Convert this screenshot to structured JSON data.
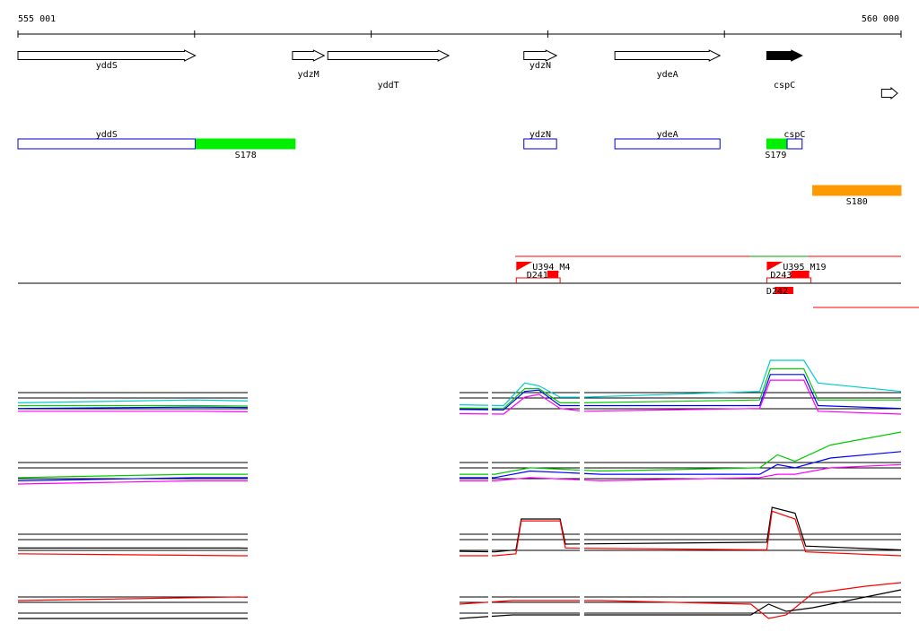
{
  "ruler": {
    "start_label": "555 001",
    "end_label": "560 000",
    "start": 555001,
    "end": 560000
  },
  "genes": [
    {
      "name": "yddS",
      "start": 555001,
      "end": 556005,
      "strand": "+",
      "color": "#ffffff"
    },
    {
      "name": "ydzM",
      "start": 556555,
      "end": 556735,
      "strand": "+",
      "color": "#ffffff"
    },
    {
      "name": "yddT",
      "start": 556755,
      "end": 557440,
      "strand": "+",
      "color": "#ffffff"
    },
    {
      "name": "ydzN",
      "start": 557865,
      "end": 558050,
      "strand": "+",
      "color": "#ffffff"
    },
    {
      "name": "ydeA",
      "start": 558380,
      "end": 558975,
      "strand": "+",
      "color": "#ffffff"
    },
    {
      "name": "cspC",
      "start": 559240,
      "end": 559440,
      "strand": "+",
      "color": "#000000"
    },
    {
      "name": "",
      "start": 559890,
      "end": 559980,
      "strand": "+",
      "color": "#ffffff"
    }
  ],
  "transcripts": [
    {
      "name": "yddS",
      "start": 555001,
      "end": 556005,
      "type": "gene",
      "color": "#0000cc"
    },
    {
      "name": "S178",
      "start": 556010,
      "end": 556570,
      "type": "segment",
      "color": "#00ee00"
    },
    {
      "name": "ydzN",
      "start": 557865,
      "end": 558050,
      "type": "gene",
      "color": "#0000cc"
    },
    {
      "name": "ydeA",
      "start": 558380,
      "end": 558975,
      "type": "gene",
      "color": "#0000cc"
    },
    {
      "name": "S179",
      "start": 559240,
      "end": 559355,
      "type": "segment",
      "color": "#00ee00"
    },
    {
      "name": "cspC",
      "start": 559355,
      "end": 559440,
      "type": "gene",
      "color": "#0000cc"
    },
    {
      "name": "S180",
      "start": 559500,
      "end": 560000,
      "type": "segment",
      "color": "#ff9900"
    }
  ],
  "tus": [
    {
      "name": "U394_M4",
      "start": 557822,
      "end": 558070,
      "color": "#ff0000"
    },
    {
      "name": "U395_M19",
      "start": 559240,
      "end": 559490,
      "color": "#ff0000"
    }
  ],
  "promoters": [
    {
      "name": "D241",
      "start": 557870,
      "end": 558060,
      "color": "#ff0000"
    },
    {
      "name": "D243",
      "start": 559250,
      "end": 559480,
      "color": "#ff0000"
    },
    {
      "name": "D242",
      "start": 559285,
      "end": 559390,
      "color": "#ff0000"
    }
  ],
  "colors": {
    "accent": "#ff0000",
    "gene_outline": "#0000cc",
    "segment_green": "#00ee00",
    "segment_orange": "#ff9900"
  },
  "chart_data": [
    {
      "type": "line",
      "panel": "conditions-panel-1",
      "title": "",
      "x": [
        555001,
        556000,
        557750,
        557870,
        557950,
        558070,
        558200,
        559200,
        559260,
        559450,
        559530,
        560000
      ],
      "series": [
        {
          "name": "",
          "values": [
            0.3,
            0.3,
            0.2,
            0.9,
            0.9,
            0.4,
            0.4,
            0.5,
            1.6,
            1.6,
            0.5,
            0.5
          ]
        },
        {
          "name": "",
          "values": [
            0.2,
            0.25,
            0.15,
            0.8,
            0.85,
            0.3,
            0.3,
            0.3,
            1.4,
            1.4,
            0.3,
            0.2
          ]
        },
        {
          "name": "",
          "values": [
            0.1,
            0.1,
            0.0,
            0.6,
            0.7,
            0.2,
            0.1,
            0.2,
            1.2,
            1.2,
            0.1,
            0.0
          ]
        },
        {
          "name": "",
          "values": [
            0.4,
            0.5,
            0.3,
            1.1,
            1.0,
            0.6,
            0.6,
            0.8,
            1.9,
            1.9,
            1.1,
            0.8
          ]
        }
      ]
    },
    {
      "type": "line",
      "panel": "conditions-panel-2",
      "title": "",
      "x": [
        555001,
        556000,
        557700,
        557900,
        558300,
        559200,
        559300,
        559400,
        559600,
        560000
      ],
      "series": [
        {
          "name": "",
          "values": [
            0.2,
            0.3,
            0.3,
            0.5,
            0.4,
            0.5,
            0.9,
            0.7,
            1.2,
            1.6
          ]
        },
        {
          "name": "",
          "values": [
            0.1,
            0.2,
            0.2,
            0.4,
            0.3,
            0.3,
            0.6,
            0.5,
            0.8,
            1.0
          ]
        },
        {
          "name": "",
          "values": [
            0.0,
            0.1,
            0.1,
            0.2,
            0.1,
            0.2,
            0.3,
            0.3,
            0.5,
            0.6
          ]
        }
      ]
    },
    {
      "type": "line",
      "panel": "strand-panel-1",
      "title": "",
      "x": [
        555001,
        556250,
        557700,
        557820,
        557850,
        558070,
        558100,
        559240,
        559270,
        559400,
        559460,
        560000
      ],
      "series": [
        {
          "name": "",
          "values": [
            0.5,
            0.5,
            0.3,
            0.4,
            2.0,
            2.0,
            0.7,
            0.8,
            2.6,
            2.3,
            0.6,
            0.4
          ],
          "color": "#000000"
        },
        {
          "name": "",
          "values": [
            0.2,
            0.1,
            0.1,
            0.2,
            1.9,
            1.9,
            0.5,
            0.4,
            2.4,
            2.0,
            0.3,
            0.1
          ],
          "color": "#ff0000"
        }
      ]
    },
    {
      "type": "line",
      "panel": "strand-panel-2",
      "title": "",
      "x": [
        555001,
        556250,
        557500,
        557800,
        558300,
        559150,
        559250,
        559350,
        559500,
        559800,
        560000
      ],
      "series": [
        {
          "name": "",
          "values": [
            0.6,
            0.7,
            0.5,
            0.6,
            0.6,
            0.5,
            0.1,
            0.2,
            0.8,
            1.0,
            1.1
          ],
          "color": "#ff0000"
        },
        {
          "name": "",
          "values": [
            0.1,
            0.1,
            0.1,
            0.2,
            0.2,
            0.2,
            0.5,
            0.3,
            0.4,
            0.7,
            0.9
          ],
          "color": "#000000"
        }
      ]
    }
  ]
}
